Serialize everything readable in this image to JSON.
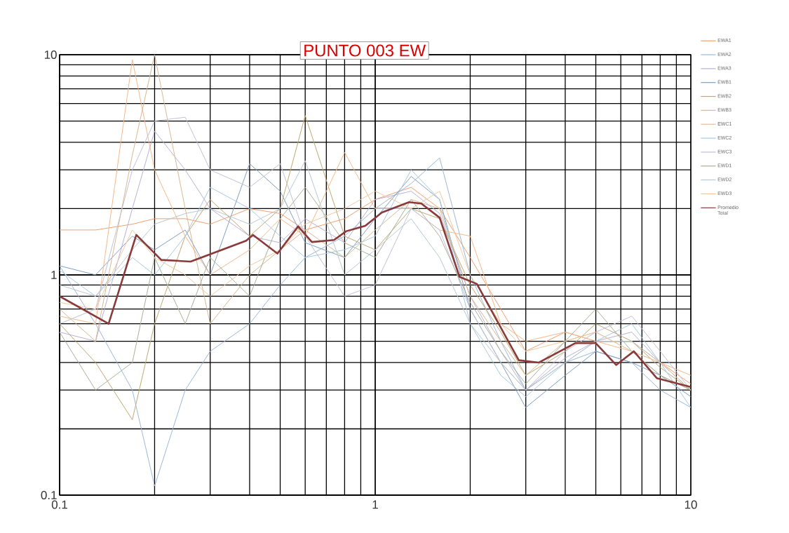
{
  "chart_data": {
    "type": "line",
    "title": "PUNTO 003 EW",
    "log": "xy",
    "grid": true,
    "legend": "right",
    "xlim": [
      0.1,
      10
    ],
    "ylim": [
      0.1,
      10
    ],
    "xticks": [
      0.1,
      1,
      10
    ],
    "yticks": [
      0.1,
      1,
      10
    ],
    "x": [
      0.1,
      0.13,
      0.17,
      0.2,
      0.25,
      0.3,
      0.4,
      0.5,
      0.6,
      0.8,
      1,
      1.3,
      1.6,
      2,
      2.5,
      3,
      4,
      5,
      6.5,
      8,
      10
    ],
    "series": [
      {
        "name": "EWA1",
        "color": "#f0a070",
        "values": [
          1.6,
          1.6,
          1.7,
          1.8,
          1.8,
          1.7,
          2.0,
          1.9,
          1.6,
          1.8,
          2.2,
          2.5,
          2.0,
          1.2,
          0.7,
          0.45,
          0.55,
          0.5,
          0.5,
          0.4,
          0.32
        ]
      },
      {
        "name": "EWA2",
        "color": "#9ab8d8",
        "values": [
          1.1,
          0.6,
          0.3,
          0.11,
          0.3,
          0.45,
          0.6,
          0.9,
          1.2,
          1.5,
          2.0,
          2.6,
          3.4,
          1.0,
          0.5,
          0.3,
          0.4,
          0.45,
          0.4,
          0.3,
          0.25
        ]
      },
      {
        "name": "EWA3",
        "color": "#b8b0d8",
        "values": [
          0.55,
          0.5,
          2.0,
          4.5,
          3.0,
          2.0,
          1.5,
          1.4,
          1.8,
          1.4,
          2.2,
          2.4,
          1.9,
          0.8,
          0.45,
          0.3,
          0.42,
          0.5,
          0.55,
          0.4,
          0.3
        ]
      },
      {
        "name": "EWB1",
        "color": "#7f9fc0",
        "values": [
          1.1,
          1.0,
          1.5,
          1.3,
          1.6,
          1.0,
          3.2,
          2.4,
          1.4,
          1.2,
          1.8,
          2.8,
          2.2,
          0.7,
          0.4,
          0.25,
          0.35,
          0.45,
          0.4,
          0.35,
          0.28
        ]
      },
      {
        "name": "EWB2",
        "color": "#c0a870",
        "values": [
          0.6,
          0.4,
          0.22,
          0.6,
          1.5,
          2.2,
          1.5,
          2.0,
          5.3,
          1.5,
          1.3,
          2.0,
          1.8,
          0.9,
          0.55,
          0.35,
          0.45,
          0.6,
          0.5,
          0.38,
          0.3
        ]
      },
      {
        "name": "EWB3",
        "color": "#d8b890",
        "values": [
          0.7,
          0.5,
          3.5,
          10,
          2.0,
          0.6,
          1.0,
          1.3,
          1.6,
          1.2,
          1.6,
          2.2,
          2.0,
          0.8,
          0.5,
          0.35,
          0.5,
          0.55,
          0.45,
          0.35,
          0.3
        ]
      },
      {
        "name": "EWC1",
        "color": "#f4b88a",
        "values": [
          0.65,
          0.6,
          9.5,
          3.0,
          1.5,
          1.0,
          1.3,
          1.8,
          1.5,
          3.6,
          2.0,
          2.0,
          1.6,
          1.5,
          0.6,
          0.5,
          0.55,
          0.5,
          0.45,
          0.4,
          0.35
        ]
      },
      {
        "name": "EWC2",
        "color": "#a8c8e0",
        "values": [
          1.05,
          0.8,
          1.2,
          1.0,
          1.5,
          2.5,
          2.0,
          1.5,
          1.2,
          1.3,
          1.5,
          3.0,
          2.2,
          0.6,
          0.35,
          0.28,
          0.4,
          0.5,
          0.6,
          0.4,
          0.25
        ]
      },
      {
        "name": "EWC3",
        "color": "#c0c0d8",
        "values": [
          0.6,
          0.7,
          3.0,
          5.0,
          5.2,
          3.0,
          2.5,
          3.2,
          1.5,
          0.8,
          0.9,
          2.0,
          1.6,
          0.7,
          0.4,
          0.3,
          0.45,
          0.55,
          0.65,
          0.45,
          0.3
        ]
      },
      {
        "name": "EWD1",
        "color": "#a8b098",
        "values": [
          0.55,
          0.3,
          0.4,
          1.2,
          0.6,
          1.2,
          0.8,
          1.8,
          2.5,
          1.4,
          1.2,
          2.2,
          1.5,
          0.75,
          0.45,
          0.32,
          0.5,
          0.7,
          0.45,
          0.35,
          0.3
        ]
      },
      {
        "name": "EWD2",
        "color": "#b8c8d0",
        "values": [
          0.9,
          0.8,
          1.3,
          1.7,
          1.9,
          2.0,
          1.7,
          2.0,
          3.3,
          1.0,
          1.3,
          1.8,
          1.2,
          0.6,
          0.4,
          0.3,
          0.4,
          0.5,
          0.5,
          0.4,
          0.3
        ]
      },
      {
        "name": "EWD3",
        "color": "#f0c8a0",
        "values": [
          0.75,
          0.7,
          1.6,
          1.2,
          1.0,
          0.8,
          1.1,
          1.3,
          1.7,
          2.0,
          2.4,
          2.0,
          2.4,
          1.0,
          0.6,
          0.45,
          0.5,
          0.55,
          0.45,
          0.4,
          0.3
        ]
      },
      {
        "name": "Promedio Total",
        "color": "#8b3a3a",
        "x": [
          0.1,
          0.143,
          0.175,
          0.21,
          0.26,
          0.39,
          0.41,
          0.49,
          0.57,
          0.63,
          0.74,
          0.81,
          0.93,
          1.05,
          1.28,
          1.4,
          1.6,
          1.85,
          2.1,
          2.6,
          2.85,
          3.3,
          4.3,
          5.0,
          5.8,
          6.6,
          7.8,
          10
        ],
        "values": [
          0.8,
          0.6,
          1.52,
          1.17,
          1.15,
          1.43,
          1.52,
          1.25,
          1.66,
          1.41,
          1.44,
          1.58,
          1.67,
          1.92,
          2.14,
          2.11,
          1.82,
          0.98,
          0.91,
          0.52,
          0.41,
          0.4,
          0.49,
          0.49,
          0.39,
          0.45,
          0.34,
          0.31
        ]
      }
    ]
  }
}
